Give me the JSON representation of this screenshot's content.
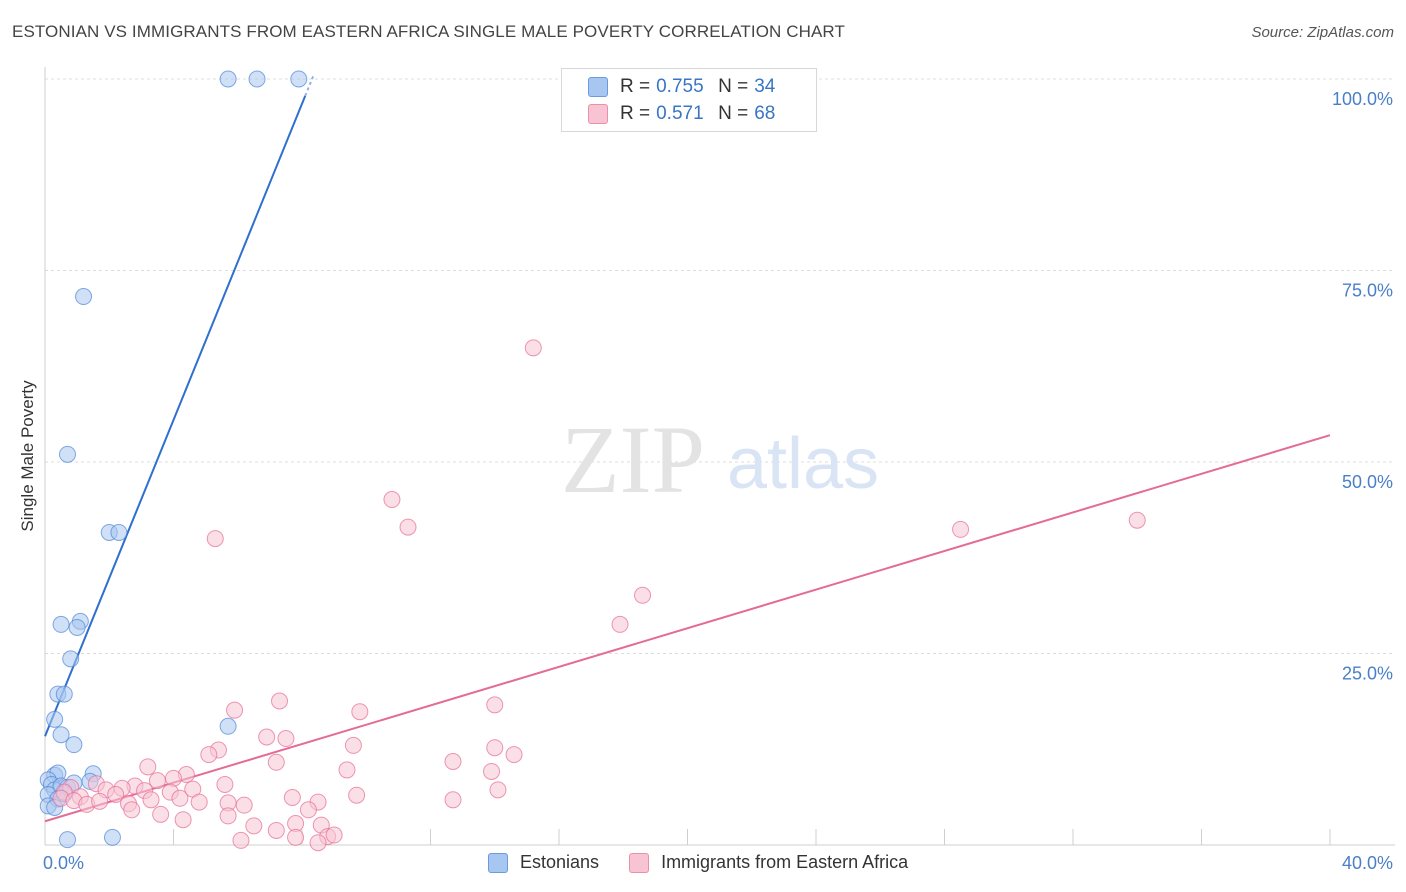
{
  "header": {
    "title": "ESTONIAN VS IMMIGRANTS FROM EASTERN AFRICA SINGLE MALE POVERTY CORRELATION CHART",
    "source": "Source: ZipAtlas.com"
  },
  "watermark": {
    "zip": "ZIP",
    "atlas": "atlas"
  },
  "legend": {
    "rows": [
      {
        "r_label": "R =",
        "r_value": "0.755",
        "n_label": "N =",
        "n_value": "34",
        "color": "#a7c6f0",
        "border": "#6a9be0"
      },
      {
        "r_label": "R =",
        "r_value": "0.571",
        "n_label": "N =",
        "n_value": "68",
        "color": "#f8c4d4",
        "border": "#ec8fab"
      }
    ]
  },
  "bottom_legend": {
    "series1": "Estonians",
    "series2": "Immigrants from Eastern Africa"
  },
  "chart_data": {
    "type": "scatter",
    "title": "ESTONIAN VS IMMIGRANTS FROM EASTERN AFRICA SINGLE MALE POVERTY CORRELATION CHART",
    "xlabel": "",
    "ylabel": "Single Male Poverty",
    "xlim": [
      0,
      40
    ],
    "ylim": [
      0,
      100
    ],
    "x_tick_labels": [
      "0.0%",
      "40.0%"
    ],
    "y_tick_values": [
      25,
      50,
      75,
      100
    ],
    "y_tick_labels": [
      "25.0%",
      "50.0%",
      "75.0%",
      "100.0%"
    ],
    "grid": true,
    "legend_position": "top-center",
    "series": [
      {
        "name": "Estonians",
        "color": "#4f86d6",
        "fill": "#a7c6f0",
        "trend": {
          "x": [
            0,
            8.1
          ],
          "y": [
            14.2,
            97.8
          ]
        },
        "points": [
          [
            5.7,
            100
          ],
          [
            6.6,
            100
          ],
          [
            7.9,
            100
          ],
          [
            1.2,
            71.6
          ],
          [
            0.7,
            51
          ],
          [
            2.0,
            40.8
          ],
          [
            2.3,
            40.8
          ],
          [
            1.1,
            29.2
          ],
          [
            1.0,
            28.4
          ],
          [
            0.5,
            28.8
          ],
          [
            0.8,
            24.3
          ],
          [
            0.4,
            19.7
          ],
          [
            0.6,
            19.7
          ],
          [
            0.3,
            16.4
          ],
          [
            0.5,
            14.4
          ],
          [
            0.9,
            13.1
          ],
          [
            5.7,
            15.5
          ],
          [
            1.5,
            9.3
          ],
          [
            1.4,
            8.3
          ],
          [
            0.3,
            9.1
          ],
          [
            0.4,
            9.4
          ],
          [
            0.1,
            8.5
          ],
          [
            0.2,
            7.9
          ],
          [
            0.3,
            7.2
          ],
          [
            0.5,
            7.7
          ],
          [
            0.7,
            7.5
          ],
          [
            0.9,
            8.1
          ],
          [
            0.1,
            6.6
          ],
          [
            0.4,
            6.0
          ],
          [
            0.6,
            6.7
          ],
          [
            0.1,
            5.1
          ],
          [
            0.3,
            4.9
          ],
          [
            0.7,
            0.7
          ],
          [
            2.1,
            1.0
          ]
        ]
      },
      {
        "name": "Immigrants from Eastern Africa",
        "color": "#e56b97",
        "fill": "#f8c4d4",
        "trend": {
          "x": [
            0,
            40
          ],
          "y": [
            3.1,
            53.5
          ]
        },
        "points": [
          [
            15.2,
            64.9
          ],
          [
            10.8,
            45.1
          ],
          [
            11.3,
            41.5
          ],
          [
            28.5,
            41.2
          ],
          [
            34.0,
            42.4
          ],
          [
            5.3,
            40.0
          ],
          [
            18.6,
            32.6
          ],
          [
            17.9,
            28.8
          ],
          [
            7.3,
            18.8
          ],
          [
            14.0,
            18.3
          ],
          [
            9.8,
            17.4
          ],
          [
            5.9,
            17.6
          ],
          [
            6.9,
            14.1
          ],
          [
            9.6,
            13.0
          ],
          [
            14.0,
            12.7
          ],
          [
            5.4,
            12.4
          ],
          [
            5.1,
            11.8
          ],
          [
            12.7,
            10.9
          ],
          [
            7.2,
            10.8
          ],
          [
            3.2,
            10.2
          ],
          [
            9.4,
            9.8
          ],
          [
            4.4,
            9.2
          ],
          [
            4.0,
            8.7
          ],
          [
            3.5,
            8.4
          ],
          [
            5.6,
            7.9
          ],
          [
            2.8,
            7.7
          ],
          [
            4.6,
            7.3
          ],
          [
            3.9,
            6.9
          ],
          [
            3.1,
            7.1
          ],
          [
            2.4,
            7.4
          ],
          [
            1.6,
            8.0
          ],
          [
            1.9,
            7.2
          ],
          [
            2.2,
            6.6
          ],
          [
            0.8,
            7.5
          ],
          [
            1.1,
            6.3
          ],
          [
            0.6,
            6.9
          ],
          [
            0.5,
            6.1
          ],
          [
            0.9,
            5.8
          ],
          [
            1.3,
            5.3
          ],
          [
            1.7,
            5.7
          ],
          [
            2.6,
            5.4
          ],
          [
            3.3,
            5.9
          ],
          [
            4.2,
            6.1
          ],
          [
            4.8,
            5.6
          ],
          [
            5.7,
            5.5
          ],
          [
            7.7,
            6.2
          ],
          [
            8.5,
            5.6
          ],
          [
            9.7,
            6.5
          ],
          [
            12.7,
            5.9
          ],
          [
            14.1,
            7.2
          ],
          [
            14.6,
            11.8
          ],
          [
            7.5,
            13.9
          ],
          [
            13.9,
            9.6
          ],
          [
            8.2,
            4.6
          ],
          [
            6.2,
            5.2
          ],
          [
            5.7,
            3.8
          ],
          [
            4.3,
            3.3
          ],
          [
            3.6,
            4.0
          ],
          [
            2.7,
            4.6
          ],
          [
            6.5,
            2.5
          ],
          [
            7.8,
            2.8
          ],
          [
            8.6,
            2.6
          ],
          [
            7.2,
            1.9
          ],
          [
            8.8,
            1.1
          ],
          [
            6.1,
            0.6
          ],
          [
            7.8,
            1.0
          ],
          [
            9.0,
            1.3
          ],
          [
            8.5,
            0.3
          ]
        ]
      }
    ]
  }
}
